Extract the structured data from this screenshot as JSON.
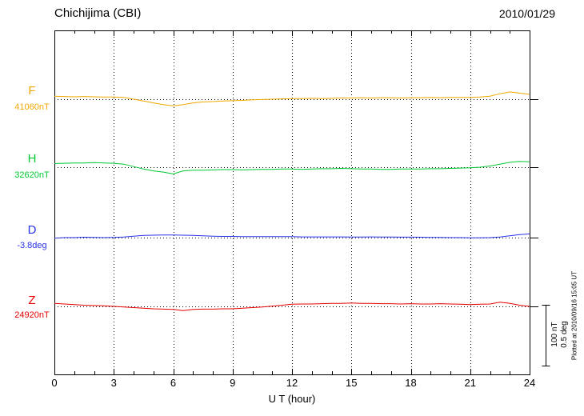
{
  "chart_data": {
    "type": "line",
    "title": "Chichijima (CBI)",
    "date": "2010/01/29",
    "xlabel": "U T (hour)",
    "x_ticks": [
      0,
      3,
      6,
      9,
      12,
      15,
      18,
      21,
      24
    ],
    "xlim": [
      0,
      24
    ],
    "x_step_hours": 0.5,
    "grid": "dotted vertical at 3h intervals, dotted horizontal baselines",
    "scale_bar": {
      "nT_label": "100 nT",
      "deg_label": "0.5 deg"
    },
    "plotted_at": "Plotted at 2010/09/16 15:05 UT",
    "series": [
      {
        "name": "F",
        "baseline_label": "41060nT",
        "baseline_value": 41060,
        "unit": "nT",
        "color": "#F0A800",
        "values": [
          5,
          4.5,
          4,
          4.5,
          4,
          3.5,
          3.5,
          3,
          0,
          -3,
          -6,
          -9,
          -11,
          -9,
          -6,
          -4.5,
          -4,
          -3,
          -2.5,
          -2,
          -1,
          -0.5,
          0,
          0.5,
          1,
          1,
          1.5,
          1,
          1.5,
          2,
          2,
          2.5,
          2,
          2.5,
          2.5,
          2,
          2.5,
          2.5,
          3,
          2.5,
          3,
          3,
          3,
          3.5,
          5,
          9,
          12,
          10,
          8
        ]
      },
      {
        "name": "H",
        "baseline_label": "32620nT",
        "baseline_value": 32620,
        "unit": "nT",
        "color": "#00C832",
        "values": [
          6,
          6.5,
          7,
          7,
          7.5,
          7,
          6.5,
          5,
          1,
          -3,
          -6,
          -8,
          -11,
          -6,
          -5,
          -5,
          -4.5,
          -4,
          -4,
          -4.5,
          -4,
          -3.5,
          -3.5,
          -3,
          -3,
          -3.5,
          -3,
          -2.5,
          -2.5,
          -2,
          -2.5,
          -3,
          -3,
          -3.5,
          -3.5,
          -3,
          -3,
          -3,
          -2.5,
          -2.5,
          -2,
          -1.5,
          -1,
          0,
          2,
          5,
          8,
          9.5,
          9
        ]
      },
      {
        "name": "D",
        "baseline_label": "-3.8deg",
        "baseline_value": -3.8,
        "unit": "deg",
        "color": "#2832E6",
        "values": [
          -0.005,
          0,
          0,
          0.003,
          0.002,
          0,
          0.002,
          0.005,
          0.012,
          0.018,
          0.02,
          0.022,
          0.022,
          0.02,
          0.018,
          0.015,
          0.012,
          0.01,
          0.01,
          0.008,
          0.008,
          0.008,
          0.008,
          0.008,
          0.008,
          0.006,
          0.006,
          0.006,
          0.006,
          0.006,
          0.005,
          0.005,
          0.006,
          0.005,
          0.005,
          0.004,
          0.004,
          0.003,
          0.002,
          0.002,
          0,
          0,
          -0.002,
          -0.002,
          0,
          0.005,
          0.015,
          0.025,
          0.03
        ]
      },
      {
        "name": "Z",
        "baseline_label": "24920nT",
        "baseline_value": 24920,
        "unit": "nT",
        "color": "#E60000",
        "values": [
          5,
          4,
          3,
          2,
          1.5,
          1,
          0,
          -1,
          -2,
          -3,
          -4,
          -4.5,
          -5,
          -7,
          -5,
          -4.5,
          -4.5,
          -4,
          -4,
          -3,
          -2,
          -1,
          0.5,
          2,
          3.5,
          4,
          4,
          4.5,
          5,
          5,
          5.5,
          5,
          5,
          4.5,
          4.5,
          4,
          4.5,
          4,
          4,
          4.5,
          4,
          3.5,
          3,
          3.5,
          4,
          7,
          5,
          2,
          0
        ]
      }
    ]
  }
}
